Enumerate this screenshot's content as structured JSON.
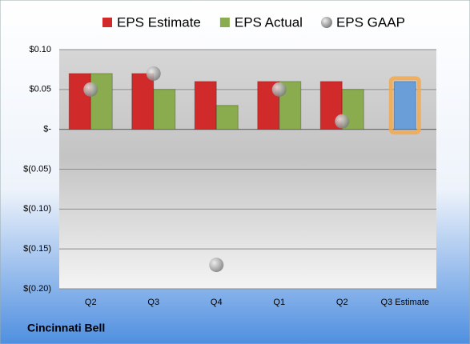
{
  "chart_data": {
    "type": "bar",
    "categories": [
      "Q2",
      "Q3",
      "Q4",
      "Q1",
      "Q2",
      "Q3 Estimate"
    ],
    "series": [
      {
        "name": "EPS Estimate",
        "color": "#d02a2a",
        "colors": [
          "#d02a2a",
          "#d02a2a",
          "#d02a2a",
          "#d02a2a",
          "#d02a2a",
          "#6a9ed8"
        ],
        "glow_color": "#f5a94e",
        "values": [
          0.07,
          0.07,
          0.06,
          0.06,
          0.06,
          0.06
        ]
      },
      {
        "name": "EPS Actual",
        "color": "#8aab4e",
        "values": [
          0.07,
          0.05,
          0.03,
          0.06,
          0.05,
          null
        ]
      },
      {
        "name": "EPS GAAP",
        "color": "#a6a6a6",
        "values": [
          0.05,
          0.07,
          -0.17,
          0.05,
          0.01,
          null
        ]
      }
    ],
    "ylim": [
      -0.2,
      0.1
    ],
    "yticks": [
      {
        "value": 0.1,
        "label": "$0.10"
      },
      {
        "value": 0.05,
        "label": "$0.05"
      },
      {
        "value": 0,
        "label": "$-"
      },
      {
        "value": -0.05,
        "label": "$(0.05)"
      },
      {
        "value": -0.1,
        "label": "$(0.10)"
      },
      {
        "value": -0.15,
        "label": "$(0.15)"
      },
      {
        "value": -0.2,
        "label": "$(0.20)"
      }
    ],
    "grid": true,
    "footer": "Cincinnati Bell"
  }
}
